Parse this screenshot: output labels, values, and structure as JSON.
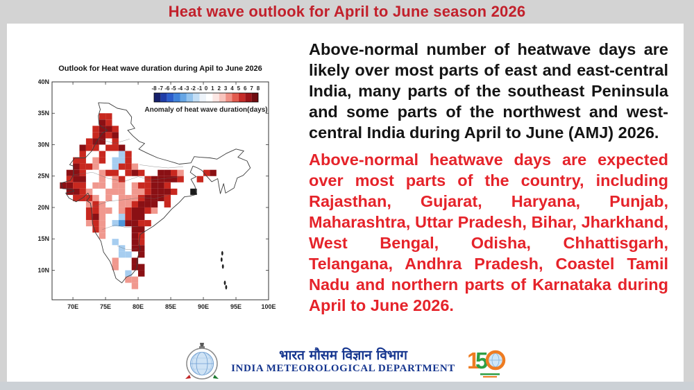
{
  "header": {
    "title": "Heat wave outlook for April to June season 2026"
  },
  "main_text": {
    "para_black": "Above-normal number of heatwave days are likely over most parts of east and east-central India, many parts of the southeast Peninsula and some parts of the northwest and west-central India during April  to June (AMJ) 2026.",
    "para_red": "Above-normal heatwave days are expected over most parts of the country, including Rajasthan, Gujarat, Haryana, Punjab, Maharashtra, Uttar Pradesh, Bihar, Jharkhand, West Bengal, Odisha, Chhattisgarh, Telangana, Andhra Pradesh, Coastel Tamil Nadu  and northern parts of Karnataka during April to June 2026."
  },
  "chart_data": {
    "type": "heatmap",
    "title": "Outlook for Heat wave duration during Apil to June 2026",
    "xlabel": "",
    "ylabel": "",
    "x_ticks": [
      {
        "v": 70,
        "label": "70E"
      },
      {
        "v": 75,
        "label": "75E"
      },
      {
        "v": 80,
        "label": "80E"
      },
      {
        "v": 85,
        "label": "85E"
      },
      {
        "v": 90,
        "label": "90E"
      },
      {
        "v": 95,
        "label": "95E"
      },
      {
        "v": 100,
        "label": "100E"
      }
    ],
    "y_ticks": [
      {
        "v": 40,
        "label": "40N"
      },
      {
        "v": 35,
        "label": "35N"
      },
      {
        "v": 30,
        "label": "30N"
      },
      {
        "v": 25,
        "label": "25N"
      },
      {
        "v": 20,
        "label": "20N"
      },
      {
        "v": 15,
        "label": "15N"
      },
      {
        "v": 10,
        "label": "10N"
      }
    ],
    "x_range": [
      66.8,
      100
    ],
    "y_range": [
      5.3,
      40
    ],
    "grid_lines": false,
    "colorbar": {
      "label": "Anomaly of heat wave duration(days)",
      "ticks": [
        "-8",
        "-7",
        "-6",
        "-5",
        "-4",
        "-3",
        "-2",
        "-1",
        "0",
        "1",
        "2",
        "3",
        "4",
        "5",
        "6",
        "7",
        "8"
      ],
      "colors": [
        "#16206b",
        "#1f3da8",
        "#2c5ecc",
        "#3f82da",
        "#66a5e4",
        "#94c4ee",
        "#c3def5",
        "#eef4fa",
        "#ffffff",
        "#fce7e4",
        "#f8c4bd",
        "#f09186",
        "#e25b4e",
        "#c62b28",
        "#9b1318",
        "#6f0c11"
      ]
    },
    "grid": {
      "lon_start": 68,
      "cell_deg": 1,
      "legend": {
        "D": "#8a1014",
        "R": "#c8281f",
        "p": "#f0988e",
        "b": "#a6cdf0",
        "B": "#4e96d9",
        "K": "#1a1a1a"
      },
      "rows": [
        {
          "lat_top": 35,
          "cells": "......RR"
        },
        {
          "lat_top": 34,
          "cells": "......DR"
        },
        {
          "lat_top": 33,
          "cells": ".....RDDR"
        },
        {
          "lat_top": 32,
          "cells": ".....RDRD"
        },
        {
          "lat_top": 31,
          "cells": "....RDD.R"
        },
        {
          "lat_top": 30,
          "cells": "...DRR.RRD"
        },
        {
          "lat_top": 29,
          "cells": "...R..R..bR"
        },
        {
          "lat_top": 28,
          "cells": "..RR.pR.bbR"
        },
        {
          "lat_top": 27,
          "cells": "..DRRp..bRRp"
        },
        {
          "lat_top": 26,
          "cells": ".DDR..pRR.RDR..DDRp...RD"
        },
        {
          "lat_top": 25,
          "cells": ".RDD..p.pR...RDDDDR..R"
        },
        {
          "lat_top": 24,
          "cells": "DDRR.pp.pp.pRRDDR"
        },
        {
          "lat_top": 23,
          "cells": ".DDRp..ppp.ppRDDDR..K"
        },
        {
          "lat_top": 22,
          "cells": "..RRRp.p.pppRDDDR"
        },
        {
          "lat_top": 21,
          "cells": "....pRp..ppRDDD.R"
        },
        {
          "lat_top": 20,
          "cells": "....RRpp.pRDDRp"
        },
        {
          "lat_top": 19,
          "cells": "....RDp..bRDD"
        },
        {
          "lat_top": 18,
          "cells": "....pRp.bBDDRR"
        },
        {
          "lat_top": 17,
          "cells": ".....Rp....DD"
        },
        {
          "lat_top": 16,
          "cells": "......p....DR"
        },
        {
          "lat_top": 15,
          "cells": "........b..DR"
        },
        {
          "lat_top": 14,
          "cells": ".........b.DD"
        },
        {
          "lat_top": 13,
          "cells": ".........bb.D"
        },
        {
          "lat_top": 12,
          "cells": "........p..D"
        },
        {
          "lat_top": 11,
          "cells": "........p..DD"
        },
        {
          "lat_top": 10,
          "cells": "..........b.D"
        },
        {
          "lat_top": 9,
          "cells": "..........pp"
        },
        {
          "lat_top": 8,
          "cells": "...........p"
        }
      ]
    }
  },
  "footer": {
    "dept_hindi": "भारत मौसम विज्ञान विभाग",
    "dept_english": "INDIA METEOROLOGICAL DEPARTMENT",
    "anniversary": "150"
  },
  "colors": {
    "banner_bg": "#d3d3d3",
    "title_red": "#c2202b",
    "body_red": "#e5232a",
    "footer_blue": "#16368f",
    "bottom_strip": "#ccd1d6"
  }
}
